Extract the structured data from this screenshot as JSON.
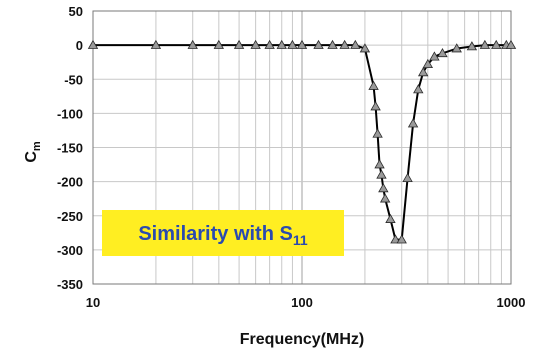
{
  "chart_data": {
    "type": "line",
    "x_scale": "log",
    "xlabel": "Frequency(MHz)",
    "ylabel_main": "C",
    "ylabel_sub": "m",
    "xlim": [
      10,
      1000
    ],
    "ylim": [
      -350,
      50
    ],
    "x_ticks": [
      10,
      100,
      1000
    ],
    "x_tick_labels": [
      "10",
      "100",
      "1000"
    ],
    "y_ticks": [
      50,
      0,
      -50,
      -100,
      -150,
      -200,
      -250,
      -300,
      -350
    ],
    "y_tick_labels": [
      "50",
      "0",
      "-50",
      "-100",
      "-150",
      "-200",
      "-250",
      "-300",
      "-350"
    ],
    "grid": true,
    "series": [
      {
        "marker": "triangle",
        "color": "#000000",
        "marker_fill": "#9a9a9a",
        "x": [
          10,
          20,
          30,
          40,
          50,
          60,
          70,
          80,
          90,
          100,
          120,
          140,
          160,
          180,
          200,
          220,
          225,
          230,
          235,
          240,
          245,
          250,
          265,
          280,
          300,
          320,
          340,
          360,
          380,
          400,
          430,
          470,
          550,
          650,
          750,
          850,
          950,
          1000
        ],
        "y": [
          0,
          0,
          0,
          0,
          0,
          0,
          0,
          0,
          0,
          0,
          0,
          0,
          0,
          0,
          -5,
          -60,
          -90,
          -130,
          -175,
          -190,
          -210,
          -225,
          -255,
          -285,
          -285,
          -195,
          -115,
          -65,
          -40,
          -28,
          -17,
          -12,
          -5,
          -2,
          0,
          0,
          0,
          0
        ]
      }
    ],
    "annotation": {
      "text_main": "Similarity with S",
      "text_sub": "11",
      "background": "#ffee22",
      "text_color": "#2a4ab0"
    },
    "colors": {
      "grid": "#c8c8c8",
      "frame": "#7a7a7a"
    }
  }
}
